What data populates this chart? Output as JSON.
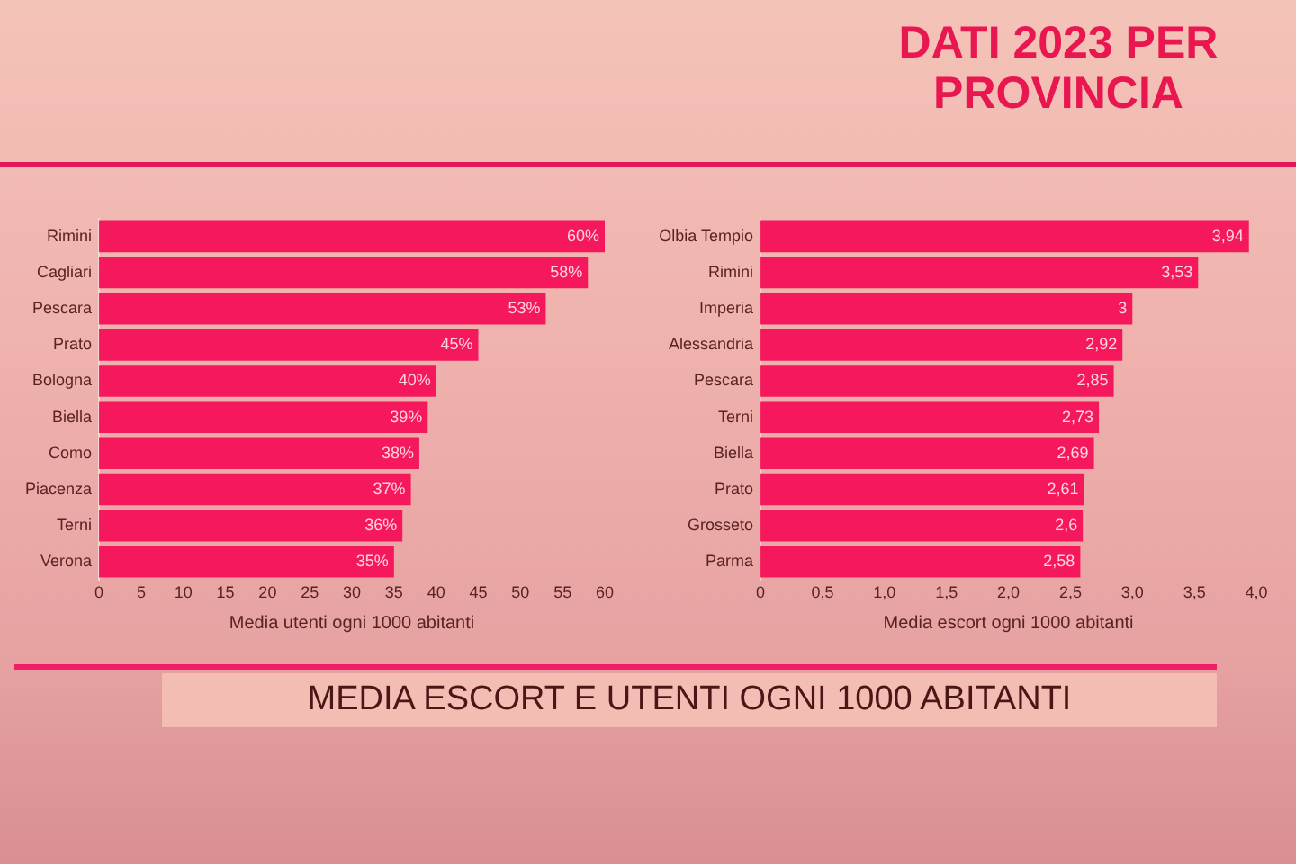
{
  "chart_data": [
    {
      "type": "bar",
      "orientation": "horizontal",
      "annotations": [
        "MEDIA ESCORT E UTENTI OGNI 1000 ABITANTI"
      ],
      "categories": [
        "Rimini",
        "Cagliari",
        "Pescara",
        "Prato",
        "Bologna",
        "Biella",
        "Como",
        "Piacenza",
        "Terni",
        "Verona"
      ],
      "values": [
        60,
        58,
        53,
        45,
        40,
        39,
        38,
        37,
        36,
        35
      ],
      "value_labels": [
        "60%",
        "58%",
        "53%",
        "45%",
        "40%",
        "39%",
        "38%",
        "37%",
        "36%",
        "35%"
      ],
      "color": "#f5185c",
      "xlabel": "Media utenti ogni 1000 abitanti",
      "xlim": [
        0,
        60
      ],
      "xticks": [
        0,
        5,
        10,
        15,
        20,
        25,
        30,
        35,
        40,
        45,
        50,
        55,
        60
      ]
    },
    {
      "type": "bar",
      "orientation": "horizontal",
      "title": "DATI 2023 PER PROVINCIA",
      "categories": [
        "Olbia Tempio",
        "Rimini",
        "Imperia",
        "Alessandria",
        "Pescara",
        "Terni",
        "Biella",
        "Prato",
        "Grosseto",
        "Parma"
      ],
      "values": [
        3.94,
        3.53,
        3,
        2.92,
        2.85,
        2.73,
        2.69,
        2.61,
        2.6,
        2.58
      ],
      "value_labels": [
        "3,94",
        "3,53",
        "3",
        "2,92",
        "2,85",
        "2,73",
        "2,69",
        "2,61",
        "2,6",
        "2,58"
      ],
      "color": "#f5185c",
      "xlabel": "Media escort ogni 1000 abitanti",
      "xlim": [
        0,
        4
      ],
      "xticks": [
        0,
        {
          "value": 0.5,
          "label": "0,5"
        },
        {
          "value": 1,
          "label": "1,0"
        },
        {
          "value": 1.5,
          "label": "1,5"
        },
        {
          "value": 2,
          "label": "2,0"
        },
        {
          "value": 2.5,
          "label": "2,5"
        },
        {
          "value": 3,
          "label": "3,0"
        },
        {
          "value": 3.5,
          "label": "3,5"
        },
        {
          "value": 4,
          "label": "4,0"
        }
      ]
    }
  ]
}
